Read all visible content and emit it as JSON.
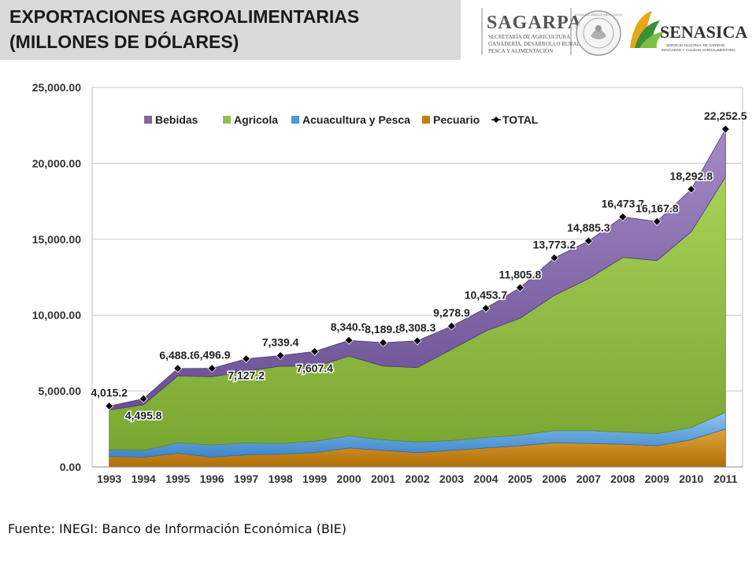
{
  "header": {
    "title_line1": "EXPORTACIONES AGROALIMENTARIAS",
    "title_line2": "(MILLONES DE DÓLARES)"
  },
  "logos": {
    "sagarpa_name": "SAGARPA",
    "sagarpa_sub1": "SECRETARÍA DE AGRICULTURA,",
    "sagarpa_sub2": "GANADERÍA, DESARROLLO RURAL,",
    "sagarpa_sub3": "PESCA Y ALIMENTACIÓN",
    "seal_text": "ESTADOS UNIDOS MEXICANOS",
    "senasica_name": "SENASICA",
    "senasica_sub1": "SERVICIO NACIONAL DE SANIDAD,",
    "senasica_sub2": "INOCUIDAD Y CALIDAD AGROALIMENTARIA"
  },
  "source": "Fuente: INEGI: Banco de Información Económica (BIE)",
  "colors": {
    "bebidas": "#8064a2",
    "agricola": "#9bbb59",
    "acuacultura": "#4f9ad6",
    "pecuario": "#c0820f",
    "total": "#000000"
  },
  "chart_data": {
    "type": "area",
    "stacked": true,
    "categories": [
      "1993",
      "1994",
      "1995",
      "1996",
      "1997",
      "1998",
      "1999",
      "2000",
      "2001",
      "2002",
      "2003",
      "2004",
      "2005",
      "2006",
      "2007",
      "2008",
      "2009",
      "2010",
      "2011"
    ],
    "ylim": [
      0,
      25000
    ],
    "yticks": [
      0,
      5000,
      10000,
      15000,
      20000,
      25000
    ],
    "ytick_labels": [
      "0.00",
      "5,000.00",
      "10,000.00",
      "15,000.00",
      "20,000.00",
      "25,000.00"
    ],
    "grid": true,
    "legend_position": "top",
    "series": [
      {
        "name": "Pecuario",
        "values": [
          700,
          650,
          900,
          650,
          800,
          850,
          950,
          1250,
          1100,
          950,
          1100,
          1250,
          1400,
          1600,
          1550,
          1500,
          1400,
          1800,
          2500
        ]
      },
      {
        "name": "Acuacultura y Pesca",
        "values": [
          450,
          450,
          700,
          800,
          800,
          700,
          750,
          800,
          700,
          700,
          650,
          700,
          700,
          800,
          850,
          800,
          800,
          800,
          1100
        ]
      },
      {
        "name": "Agricola",
        "values": [
          2600,
          3000,
          4400,
          4500,
          4700,
          5100,
          4900,
          5250,
          4850,
          4900,
          6000,
          7000,
          7700,
          8900,
          10000,
          11500,
          11400,
          12900,
          15500
        ]
      },
      {
        "name": "Bebidas",
        "values": [
          265,
          396,
          489,
          547,
          827,
          689,
          1007,
          1041,
          1540,
          1758,
          1529,
          1504,
          2006,
          2473,
          2485,
          2674,
          2568,
          2793,
          3153
        ]
      }
    ],
    "total": {
      "name": "TOTAL",
      "values": [
        4015.2,
        4495.8,
        6488.8,
        6496.9,
        7127.2,
        7339.4,
        7607.4,
        8340.9,
        8189.8,
        8308.3,
        9278.9,
        10453.7,
        11805.8,
        13773.2,
        14885.3,
        16473.7,
        16167.8,
        18292.8,
        22252.5
      ],
      "labels": [
        "4,015.2",
        "4,495.8",
        "6,488.8",
        "6,496.9",
        "7,127.2",
        "7,339.4",
        "7,607.4",
        "8,340.9",
        "8,189.8",
        "8,308.3",
        "9,278.9",
        "10,453.7",
        "11,805.8",
        "13,773.2",
        "14,885.3",
        "16,473.7",
        "16,167.8",
        "18,292.8",
        "22,252.5"
      ],
      "label_side": [
        "above",
        "below",
        "above",
        "above",
        "below",
        "above",
        "below",
        "above",
        "above",
        "above",
        "above",
        "above",
        "above",
        "above",
        "above",
        "above",
        "above",
        "above",
        "above"
      ]
    },
    "legend": [
      "Bebidas",
      "Agricola",
      "Acuacultura y Pesca",
      "Pecuario",
      "TOTAL"
    ]
  }
}
